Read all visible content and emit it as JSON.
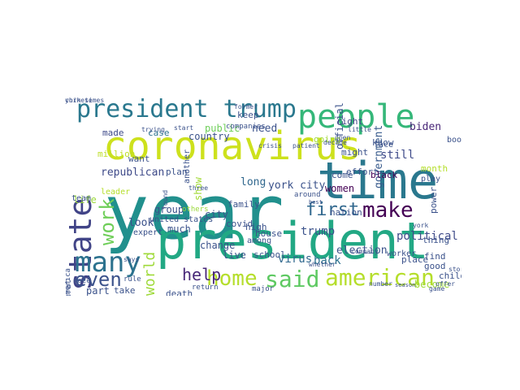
{
  "words": [
    {
      "text": "year",
      "color": "#21908d",
      "vertical": false
    },
    {
      "text": "coronavirus",
      "color": "#cde11d",
      "vertical": false
    },
    {
      "text": "president",
      "color": "#22a884",
      "vertical": false
    },
    {
      "text": "time",
      "color": "#2a788e",
      "vertical": false
    },
    {
      "text": "president trump",
      "color": "#2a788e",
      "vertical": false
    },
    {
      "text": "people",
      "color": "#35b779",
      "vertical": false
    },
    {
      "text": "state",
      "color": "#414487",
      "vertical": true
    },
    {
      "text": "many",
      "color": "#2c728e",
      "vertical": false
    },
    {
      "text": "said",
      "color": "#5ec962",
      "vertical": false
    },
    {
      "text": "american",
      "color": "#b5de2b",
      "vertical": false
    },
    {
      "text": "home",
      "color": "#b5de2b",
      "vertical": false
    },
    {
      "text": "make",
      "color": "#440154",
      "vertical": false
    },
    {
      "text": "first",
      "color": "#31688e",
      "vertical": false
    },
    {
      "text": "work",
      "color": "#6ece58",
      "vertical": true
    },
    {
      "text": "even",
      "color": "#3b528b",
      "vertical": false
    },
    {
      "text": "world",
      "color": "#9fda3a",
      "vertical": true
    },
    {
      "text": "help",
      "color": "#482878",
      "vertical": false
    },
    {
      "text": "republican",
      "color": "#3e4a89",
      "vertical": false
    },
    {
      "text": "york city",
      "color": "#3b528b",
      "vertical": false
    },
    {
      "text": "trump",
      "color": "#3b528b",
      "vertical": false
    },
    {
      "text": "back",
      "color": "#2c728e",
      "vertical": false
    },
    {
      "text": "political",
      "color": "#3e4a89",
      "vertical": false
    },
    {
      "text": "virus",
      "color": "#30688e",
      "vertical": false
    },
    {
      "text": "government",
      "color": "#375a8c",
      "vertical": true
    },
    {
      "text": "biden",
      "color": "#482677",
      "vertical": false
    },
    {
      "text": "still",
      "color": "#3e4a89",
      "vertical": false
    },
    {
      "text": "long",
      "color": "#31688e",
      "vertical": false
    },
    {
      "text": "election",
      "color": "#3b528b",
      "vertical": false
    },
    {
      "text": "become",
      "color": "#a0da39",
      "vertical": false
    },
    {
      "text": "life",
      "color": "#9bd93c",
      "vertical": false
    },
    {
      "text": "official",
      "color": "#3b528b",
      "vertical": true
    },
    {
      "text": "right",
      "color": "#414487",
      "vertical": false
    },
    {
      "text": "case",
      "color": "#2c728e",
      "vertical": false
    },
    {
      "text": "country",
      "color": "#3b528b",
      "vertical": false
    },
    {
      "text": "public",
      "color": "#6ece58",
      "vertical": false
    },
    {
      "text": "need",
      "color": "#3b528b",
      "vertical": false
    },
    {
      "text": "made",
      "color": "#3e4a89",
      "vertical": false
    },
    {
      "text": "million",
      "color": "#bddf26",
      "vertical": false
    },
    {
      "text": "want",
      "color": "#3b528b",
      "vertical": false
    },
    {
      "text": "group",
      "color": "#3b528b",
      "vertical": false
    },
    {
      "text": "much",
      "color": "#3b528b",
      "vertical": false
    },
    {
      "text": "change",
      "color": "#3b528b",
      "vertical": false
    },
    {
      "text": "look",
      "color": "#3b528b",
      "vertical": false
    },
    {
      "text": "plan",
      "color": "#3b528b",
      "vertical": false
    },
    {
      "text": "show",
      "color": "#a2da37",
      "vertical": true
    },
    {
      "text": "city",
      "color": "#3b528b",
      "vertical": false
    },
    {
      "text": "live",
      "color": "#3b528b",
      "vertical": false
    },
    {
      "text": "month",
      "color": "#b5de2b",
      "vertical": false
    },
    {
      "text": "women",
      "color": "#440154",
      "vertical": false
    },
    {
      "text": "come",
      "color": "#3b528b",
      "vertical": false
    },
    {
      "text": "nation",
      "color": "#3b528b",
      "vertical": false
    },
    {
      "text": "part",
      "color": "#3b528b",
      "vertical": false
    },
    {
      "text": "take",
      "color": "#3b528b",
      "vertical": false
    },
    {
      "text": "death",
      "color": "#3b528b",
      "vertical": false
    },
    {
      "text": "children",
      "color": "#3b528b",
      "vertical": false
    },
    {
      "text": "place",
      "color": "#3b528b",
      "vertical": false
    },
    {
      "text": "thing",
      "color": "#3b528b",
      "vertical": false
    },
    {
      "text": "find",
      "color": "#3b528b",
      "vertical": false
    },
    {
      "text": "good",
      "color": "#3b528b",
      "vertical": false
    },
    {
      "text": "going",
      "color": "#a0da39",
      "vertical": false
    },
    {
      "text": "might",
      "color": "#3b528b",
      "vertical": false
    },
    {
      "text": "know",
      "color": "#3b528b",
      "vertical": false
    },
    {
      "text": "face",
      "color": "#3b528b",
      "vertical": false
    },
    {
      "text": "black",
      "color": "#440154",
      "vertical": false
    },
    {
      "text": "power",
      "color": "#3b528b",
      "vertical": true
    },
    {
      "text": "united states",
      "color": "#3b528b",
      "vertical": false
    },
    {
      "text": "another",
      "color": "#3b528b",
      "vertical": true
    },
    {
      "text": "covid",
      "color": "#3b528b",
      "vertical": false
    },
    {
      "text": "high",
      "color": "#3b528b",
      "vertical": false
    },
    {
      "text": "house",
      "color": "#3b528b",
      "vertical": false
    },
    {
      "text": "family",
      "color": "#3b528b",
      "vertical": false
    },
    {
      "text": "school",
      "color": "#3b528b",
      "vertical": false
    },
    {
      "text": "among",
      "color": "#3b528b",
      "vertical": false
    },
    {
      "text": "keep",
      "color": "#3b528b",
      "vertical": false
    },
    {
      "text": "effort",
      "color": "#3b528b",
      "vertical": false
    },
    {
      "text": "worker",
      "color": "#3b528b",
      "vertical": false
    },
    {
      "text": "others",
      "color": "#9bd93c",
      "vertical": false
    },
    {
      "text": "leader",
      "color": "#b5de2b",
      "vertical": false
    },
    {
      "text": "book",
      "color": "#3b528b",
      "vertical": false
    },
    {
      "text": "play",
      "color": "#3b528b",
      "vertical": false
    },
    {
      "text": "team",
      "color": "#3b528b",
      "vertical": false
    },
    {
      "text": "expert",
      "color": "#3b528b",
      "vertical": false
    },
    {
      "text": "democrat",
      "color": "#3b528b",
      "vertical": true
    },
    {
      "text": "america",
      "color": "#3b528b",
      "vertical": true
    },
    {
      "text": "race",
      "color": "#3b528b",
      "vertical": false
    },
    {
      "text": "rule",
      "color": "#3b528b",
      "vertical": false
    },
    {
      "text": "says",
      "color": "#3b528b",
      "vertical": false
    },
    {
      "text": "around",
      "color": "#3b528b",
      "vertical": false
    },
    {
      "text": "return",
      "color": "#3b528b",
      "vertical": false
    },
    {
      "text": "major",
      "color": "#3b528b",
      "vertical": false
    },
    {
      "text": "companies",
      "color": "#3b528b",
      "vertical": false
    },
    {
      "text": "former",
      "color": "#3b528b",
      "vertical": false
    },
    {
      "text": "found",
      "color": "#3b528b",
      "vertical": true
    },
    {
      "text": "start",
      "color": "#3b528b",
      "vertical": false
    },
    {
      "text": "trying",
      "color": "#3b528b",
      "vertical": false
    },
    {
      "text": "decade",
      "color": "#3b528b",
      "vertical": false
    },
    {
      "text": "little",
      "color": "#3b528b",
      "vertical": false
    },
    {
      "text": "open",
      "color": "#3b528b",
      "vertical": false
    },
    {
      "text": "crisis",
      "color": "#3b528b",
      "vertical": false
    },
    {
      "text": "three",
      "color": "#3b528b",
      "vertical": false
    },
    {
      "text": "game",
      "color": "#3b528b",
      "vertical": false
    },
    {
      "text": "story",
      "color": "#3b528b",
      "vertical": false
    },
    {
      "text": "offer",
      "color": "#3b528b",
      "vertical": false
    },
    {
      "text": "whether",
      "color": "#3b528b",
      "vertical": false
    },
    {
      "text": "company",
      "color": "#3b528b",
      "vertical": false
    },
    {
      "text": "number",
      "color": "#3b528b",
      "vertical": false
    },
    {
      "text": "season",
      "color": "#3b528b",
      "vertical": false
    },
    {
      "text": "best",
      "color": "#3b528b",
      "vertical": false
    },
    {
      "text": "patient",
      "color": "#3b528b",
      "vertical": false
    },
    {
      "text": "york",
      "color": "#3b528b",
      "vertical": false
    },
    {
      "text": "york times",
      "color": "#3b528b",
      "vertical": false
    },
    {
      "text": "chinese",
      "color": "#3b528b",
      "vertical": false
    }
  ]
}
